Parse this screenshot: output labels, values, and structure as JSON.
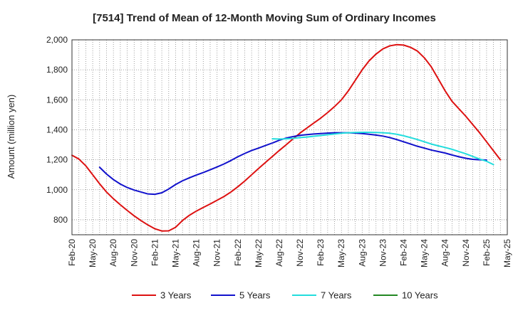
{
  "chart_data": {
    "type": "line",
    "title": "[7514]  Trend of Mean of 12-Month Moving Sum of Ordinary Incomes",
    "xlabel": "",
    "ylabel": "Amount (million yen)",
    "ylim": [
      700,
      2000
    ],
    "yticks": [
      800,
      1000,
      1200,
      1400,
      1600,
      1800,
      2000
    ],
    "ytick_labels": [
      "800",
      "1,000",
      "1,200",
      "1,400",
      "1,600",
      "1,800",
      "2,000"
    ],
    "x_range_months": [
      0,
      63
    ],
    "xticks": [
      {
        "label": "Feb-20",
        "m": 0
      },
      {
        "label": "May-20",
        "m": 3
      },
      {
        "label": "Aug-20",
        "m": 6
      },
      {
        "label": "Nov-20",
        "m": 9
      },
      {
        "label": "Feb-21",
        "m": 12
      },
      {
        "label": "May-21",
        "m": 15
      },
      {
        "label": "Aug-21",
        "m": 18
      },
      {
        "label": "Nov-21",
        "m": 21
      },
      {
        "label": "Feb-22",
        "m": 24
      },
      {
        "label": "May-22",
        "m": 27
      },
      {
        "label": "Aug-22",
        "m": 30
      },
      {
        "label": "Nov-22",
        "m": 33
      },
      {
        "label": "Feb-23",
        "m": 36
      },
      {
        "label": "May-23",
        "m": 39
      },
      {
        "label": "Aug-23",
        "m": 42
      },
      {
        "label": "Nov-23",
        "m": 45
      },
      {
        "label": "Feb-24",
        "m": 48
      },
      {
        "label": "May-24",
        "m": 51
      },
      {
        "label": "Aug-24",
        "m": 54
      },
      {
        "label": "Nov-24",
        "m": 57
      },
      {
        "label": "Feb-25",
        "m": 60
      },
      {
        "label": "May-25",
        "m": 63
      }
    ],
    "grid": true,
    "legend_position": "bottom",
    "series": [
      {
        "name": "3 Years",
        "color": "#dd1111",
        "start_m": 0,
        "values": [
          1230,
          1205,
          1160,
          1100,
          1040,
          985,
          940,
          900,
          862,
          826,
          794,
          765,
          740,
          725,
          726,
          750,
          795,
          830,
          858,
          882,
          905,
          930,
          955,
          985,
          1020,
          1058,
          1100,
          1142,
          1182,
          1222,
          1262,
          1300,
          1340,
          1378,
          1412,
          1445,
          1478,
          1515,
          1555,
          1600,
          1660,
          1730,
          1800,
          1860,
          1905,
          1940,
          1960,
          1968,
          1965,
          1950,
          1925,
          1880,
          1820,
          1740,
          1660,
          1590,
          1540,
          1490,
          1435,
          1380,
          1320,
          1260,
          1200
        ]
      },
      {
        "name": "5 Years",
        "color": "#1111cc",
        "start_m": 4,
        "values": [
          1150,
          1105,
          1068,
          1038,
          1015,
          998,
          985,
          972,
          970,
          980,
          1005,
          1035,
          1060,
          1080,
          1098,
          1115,
          1133,
          1152,
          1172,
          1195,
          1220,
          1242,
          1262,
          1278,
          1295,
          1312,
          1330,
          1345,
          1355,
          1363,
          1368,
          1372,
          1375,
          1378,
          1380,
          1380,
          1380,
          1378,
          1375,
          1370,
          1365,
          1358,
          1348,
          1335,
          1320,
          1305,
          1290,
          1278,
          1265,
          1255,
          1245,
          1232,
          1220,
          1210,
          1203,
          1200,
          1198
        ]
      },
      {
        "name": "7 Years",
        "color": "#22dddd",
        "start_m": 29,
        "values": [
          1340,
          1338,
          1340,
          1343,
          1348,
          1352,
          1357,
          1362,
          1367,
          1372,
          1377,
          1380,
          1382,
          1383,
          1383,
          1382,
          1380,
          1377,
          1370,
          1360,
          1348,
          1335,
          1320,
          1305,
          1293,
          1282,
          1270,
          1255,
          1240,
          1222,
          1205,
          1190,
          1168
        ]
      },
      {
        "name": "10 Years",
        "color": "#228822",
        "start_m": 0,
        "values": []
      }
    ]
  }
}
